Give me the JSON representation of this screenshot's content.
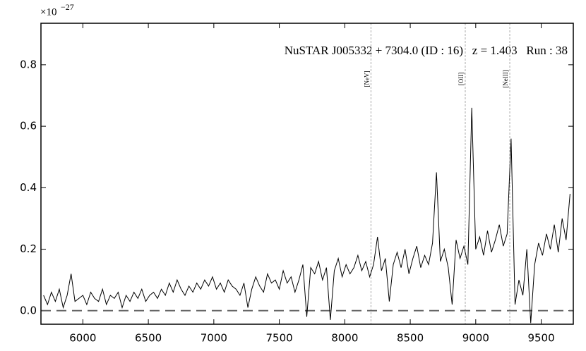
{
  "chart_data": {
    "type": "line",
    "title": "NuSTAR J005332 + 7304.0 (ID : 16)   z = 1.403   Run : 38",
    "y_offset_label": {
      "base": "×10",
      "exponent": "−27"
    },
    "xlim": [
      5680,
      9745
    ],
    "ylim": [
      -0.044,
      0.935
    ],
    "xticks": [
      6000,
      6500,
      7000,
      7500,
      8000,
      8500,
      9000,
      9500
    ],
    "yticks": [
      {
        "value": 0,
        "label": "0.0"
      },
      0.2,
      0.4,
      0.6,
      0.8
    ],
    "hline": 0,
    "lines": [
      {
        "label": "[NeV]",
        "x": 8200
      },
      {
        "label": "[OII]",
        "x": 8920
      },
      {
        "label": "[NeIII]",
        "x": 9260
      }
    ],
    "series": [
      {
        "color": "#000000",
        "x": [
          5700,
          5730,
          5760,
          5790,
          5820,
          5850,
          5880,
          5910,
          5940,
          5970,
          6000,
          6030,
          6060,
          6090,
          6120,
          6150,
          6180,
          6210,
          6240,
          6270,
          6300,
          6330,
          6360,
          6390,
          6420,
          6450,
          6480,
          6510,
          6540,
          6570,
          6600,
          6630,
          6660,
          6690,
          6720,
          6750,
          6780,
          6810,
          6840,
          6870,
          6900,
          6930,
          6960,
          6990,
          7020,
          7050,
          7080,
          7110,
          7140,
          7170,
          7200,
          7230,
          7260,
          7290,
          7320,
          7350,
          7380,
          7410,
          7440,
          7470,
          7500,
          7530,
          7560,
          7590,
          7620,
          7650,
          7680,
          7710,
          7740,
          7770,
          7800,
          7830,
          7860,
          7890,
          7920,
          7950,
          7980,
          8010,
          8040,
          8070,
          8100,
          8130,
          8160,
          8190,
          8220,
          8250,
          8280,
          8310,
          8340,
          8370,
          8400,
          8430,
          8460,
          8490,
          8520,
          8550,
          8580,
          8610,
          8640,
          8670,
          8700,
          8730,
          8760,
          8790,
          8820,
          8850,
          8880,
          8910,
          8940,
          8970,
          9000,
          9030,
          9060,
          9090,
          9120,
          9150,
          9180,
          9210,
          9240,
          9270,
          9300,
          9330,
          9360,
          9390,
          9420,
          9450,
          9480,
          9510,
          9540,
          9570,
          9600,
          9630,
          9660,
          9690,
          9720
        ],
        "values": [
          0.05,
          0.02,
          0.06,
          0.03,
          0.07,
          0.01,
          0.05,
          0.12,
          0.03,
          0.04,
          0.05,
          0.02,
          0.06,
          0.04,
          0.03,
          0.07,
          0.02,
          0.05,
          0.04,
          0.06,
          0.01,
          0.05,
          0.03,
          0.06,
          0.04,
          0.07,
          0.03,
          0.05,
          0.06,
          0.04,
          0.07,
          0.05,
          0.09,
          0.06,
          0.1,
          0.07,
          0.05,
          0.08,
          0.06,
          0.09,
          0.07,
          0.1,
          0.08,
          0.11,
          0.07,
          0.09,
          0.06,
          0.1,
          0.08,
          0.07,
          0.05,
          0.09,
          0.01,
          0.07,
          0.11,
          0.08,
          0.06,
          0.12,
          0.09,
          0.1,
          0.07,
          0.13,
          0.09,
          0.11,
          0.06,
          0.1,
          0.15,
          -0.02,
          0.14,
          0.12,
          0.16,
          0.1,
          0.14,
          -0.03,
          0.13,
          0.17,
          0.11,
          0.15,
          0.12,
          0.14,
          0.18,
          0.13,
          0.16,
          0.11,
          0.15,
          0.24,
          0.13,
          0.17,
          0.03,
          0.15,
          0.19,
          0.14,
          0.2,
          0.12,
          0.17,
          0.21,
          0.14,
          0.18,
          0.15,
          0.22,
          0.45,
          0.16,
          0.2,
          0.14,
          0.02,
          0.23,
          0.17,
          0.21,
          0.15,
          0.66,
          0.2,
          0.24,
          0.18,
          0.26,
          0.19,
          0.23,
          0.28,
          0.21,
          0.25,
          0.56,
          0.02,
          0.1,
          0.05,
          0.2,
          -0.04,
          0.15,
          0.22,
          0.18,
          0.25,
          0.2,
          0.28,
          0.19,
          0.3,
          0.23,
          0.38
        ]
      }
    ]
  }
}
